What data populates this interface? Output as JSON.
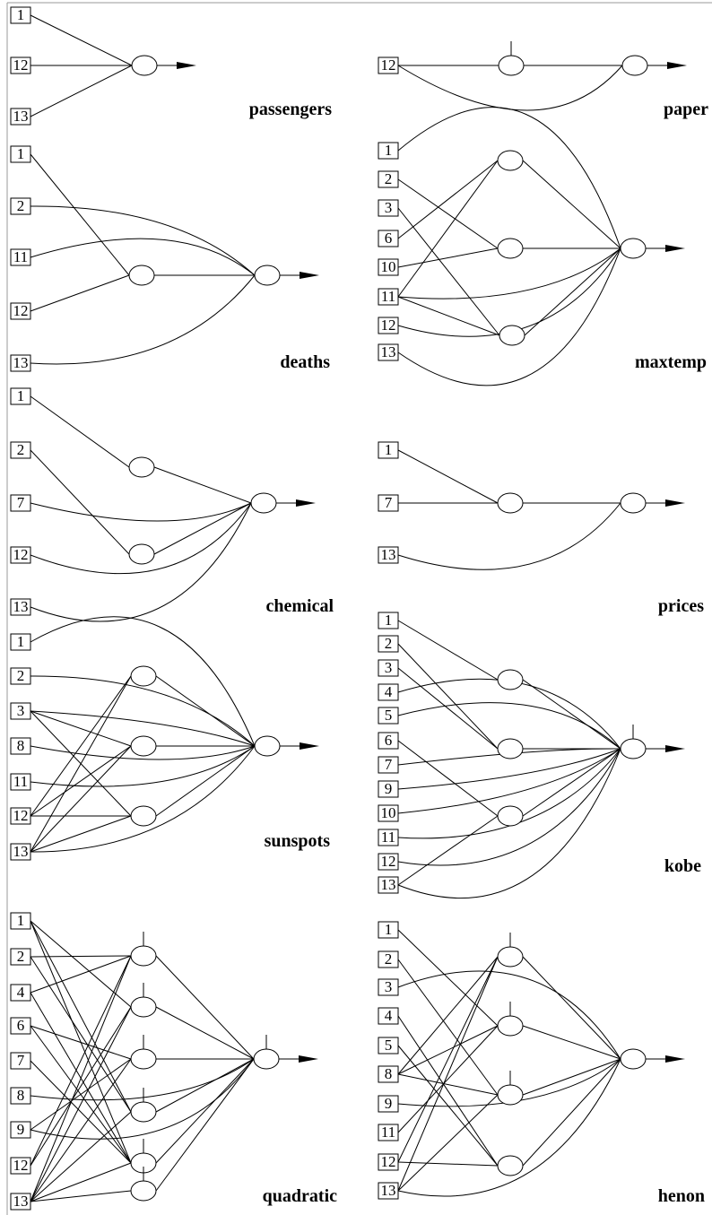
{
  "panels": [
    {
      "name": "passengers",
      "inputs": [
        "1",
        "12",
        "13"
      ]
    },
    {
      "name": "paper",
      "inputs": [
        "12"
      ]
    },
    {
      "name": "deaths",
      "inputs": [
        "1",
        "2",
        "11",
        "12",
        "13"
      ]
    },
    {
      "name": "maxtemp",
      "inputs": [
        "1",
        "2",
        "3",
        "6",
        "10",
        "11",
        "12",
        "13"
      ]
    },
    {
      "name": "chemical",
      "inputs": [
        "1",
        "2",
        "7",
        "12",
        "13"
      ]
    },
    {
      "name": "prices",
      "inputs": [
        "1",
        "7",
        "13"
      ]
    },
    {
      "name": "sunspots",
      "inputs": [
        "1",
        "2",
        "3",
        "8",
        "11",
        "12",
        "13"
      ]
    },
    {
      "name": "kobe",
      "inputs": [
        "1",
        "2",
        "3",
        "4",
        "5",
        "6",
        "7",
        "9",
        "10",
        "11",
        "12",
        "13"
      ]
    },
    {
      "name": "quadratic",
      "inputs": [
        "1",
        "2",
        "4",
        "6",
        "7",
        "8",
        "9",
        "12",
        "13"
      ]
    },
    {
      "name": "henon",
      "inputs": [
        "1",
        "2",
        "3",
        "4",
        "5",
        "8",
        "9",
        "11",
        "12",
        "13"
      ]
    }
  ]
}
